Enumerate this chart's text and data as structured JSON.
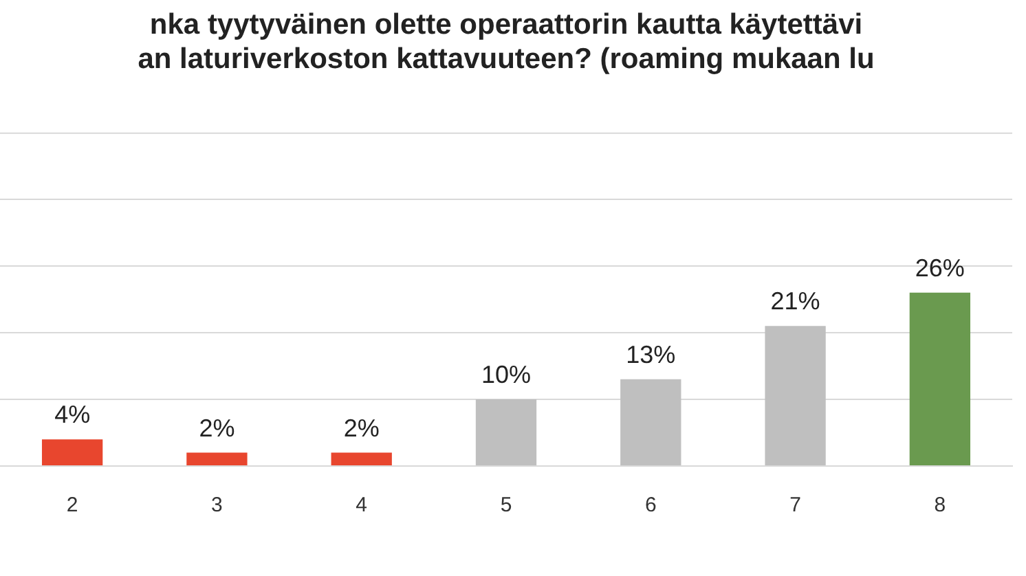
{
  "chart_data": {
    "type": "bar",
    "title": "nka tyytyväinen olette operaattorin kautta käytettävi\nan laturiverkoston kattavuuteen? (roaming mukaan lu",
    "categories": [
      "2",
      "3",
      "4",
      "5",
      "6",
      "7",
      "8"
    ],
    "values": [
      4,
      2,
      2,
      10,
      13,
      21,
      26
    ],
    "colors": [
      "#e8462e",
      "#e8462e",
      "#e8462e",
      "#bfbfbf",
      "#bfbfbf",
      "#bfbfbf",
      "#6a9a4f"
    ],
    "value_labels": [
      "4%",
      "2%",
      "2%",
      "10%",
      "13%",
      "21%",
      "26%"
    ],
    "ylim": [
      0,
      50
    ],
    "yticks": [
      {
        "value": 0,
        "label": null
      },
      {
        "value": 10,
        "label": null
      },
      {
        "value": 20,
        "label": null
      },
      {
        "value": 30,
        "label": null
      },
      {
        "value": 40,
        "label": null
      }
    ],
    "grid": "y",
    "tick_labels": "x",
    "legend": false
  }
}
